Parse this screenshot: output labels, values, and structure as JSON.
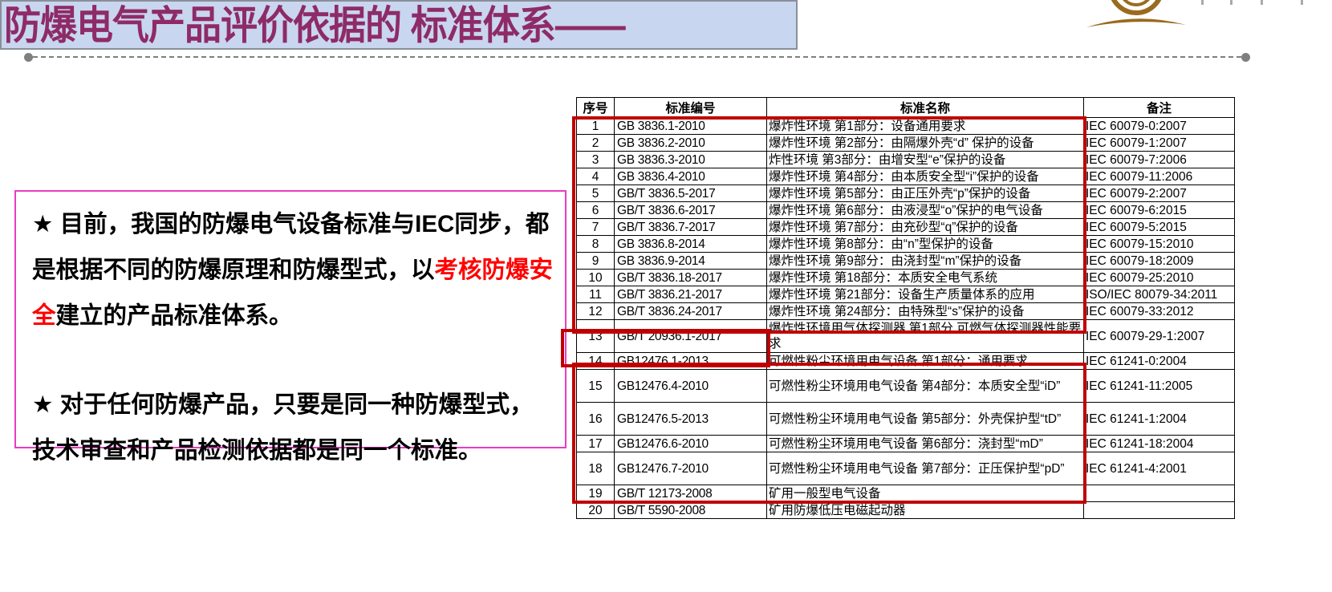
{
  "slide": {
    "title": "防爆电气产品评价依据的 标准体系",
    "title_suffix": "——",
    "title_color": "#8e2b66",
    "title_bg": "#c9d6f0"
  },
  "logo": {
    "name": "certification-emblem",
    "color": "#9a6a1f"
  },
  "note_box": {
    "border_color": "#ea3cc2",
    "highlight_text_color": "#ff0000",
    "paragraphs": [
      {
        "segments": [
          {
            "text": "★ 目前，我国的防爆电气设备标准与IEC同步，都是根据不同的防爆原理和防爆型式，以",
            "color": "#000000"
          },
          {
            "text": "考核防爆安全",
            "color": "#ff0000"
          },
          {
            "text": "建立的产品标准体系。",
            "color": "#000000"
          }
        ]
      },
      {
        "segments": [
          {
            "text": "★ 对于任何防爆产品，只要是同一种防爆型式，技术审查和产品检测依据都是同一个标准。",
            "color": "#000000"
          }
        ]
      }
    ]
  },
  "table": {
    "highlight_color": "#c00000",
    "headers": [
      "序号",
      "标准编号",
      "标准名称",
      "备注"
    ],
    "rows": [
      {
        "no": "1",
        "code": "GB 3836.1-2010",
        "name": "爆炸性环境 第1部分：设备通用要求",
        "remark": "IEC 60079-0:2007",
        "tall": false
      },
      {
        "no": "2",
        "code": "GB 3836.2-2010",
        "name": "爆炸性环境 第2部分：由隔爆外壳“d” 保护的设备",
        "remark": "IEC 60079-1:2007",
        "tall": false
      },
      {
        "no": "3",
        "code": "GB 3836.3-2010",
        "name": "炸性环境 第3部分：由增安型“e”保护的设备",
        "remark": "IEC 60079-7:2006",
        "tall": false
      },
      {
        "no": "4",
        "code": "GB 3836.4-2010",
        "name": "爆炸性环境 第4部分：由本质安全型“i”保护的设备",
        "remark": "IEC 60079-11:2006",
        "tall": false
      },
      {
        "no": "5",
        "code": "GB/T 3836.5-2017",
        "name": "爆炸性环境 第5部分：由正压外壳“p”保护的设备",
        "remark": "IEC 60079-2:2007",
        "tall": false
      },
      {
        "no": "6",
        "code": "GB/T 3836.6-2017",
        "name": "爆炸性环境 第6部分：由液浸型“o”保护的电气设备",
        "remark": "IEC 60079-6:2015",
        "tall": false
      },
      {
        "no": "7",
        "code": "GB/T 3836.7-2017",
        "name": "爆炸性环境 第7部分：由充砂型“q”保护的设备",
        "remark": "IEC 60079-5:2015",
        "tall": false
      },
      {
        "no": "8",
        "code": "GB 3836.8-2014",
        "name": "爆炸性环境 第8部分：由“n”型保护的设备",
        "remark": "IEC 60079-15:2010",
        "tall": false
      },
      {
        "no": "9",
        "code": "GB 3836.9-2014",
        "name": "爆炸性环境 第9部分：由浇封型“m”保护的设备",
        "remark": "IEC 60079-18:2009",
        "tall": false
      },
      {
        "no": "10",
        "code": "GB/T 3836.18-2017",
        "name": "爆炸性环境 第18部分：本质安全电气系统",
        "remark": "IEC 60079-25:2010",
        "tall": false
      },
      {
        "no": "11",
        "code": "GB/T 3836.21-2017",
        "name": "爆炸性环境 第21部分：设备生产质量体系的应用",
        "remark": "ISO/IEC 80079-34:2011",
        "tall": false
      },
      {
        "no": "12",
        "code": "GB/T 3836.24-2017",
        "name": "爆炸性环境 第24部分：由特殊型“s”保护的设备",
        "remark": "IEC 60079-33:2012",
        "tall": false
      },
      {
        "no": "13",
        "code": "GB/T 20936.1-2017",
        "name": "爆炸性环境用气体探测器 第1部分 可燃气体探测器性能要求",
        "remark": "IEC 60079-29-1:2007",
        "tall": true
      },
      {
        "no": "14",
        "code": "GB12476.1-2013",
        "name": "可燃性粉尘环境用电气设备 第1部分：通用要求",
        "remark": "IEC 61241-0:2004",
        "tall": false
      },
      {
        "no": "15",
        "code": "GB12476.4-2010",
        "name": "可燃性粉尘环境用电气设备 第4部分：本质安全型“iD”",
        "remark": "IEC 61241-11:2005",
        "tall": true
      },
      {
        "no": "16",
        "code": "GB12476.5-2013",
        "name": "可燃性粉尘环境用电气设备 第5部分：外壳保护型“tD”",
        "remark": "IEC 61241-1:2004",
        "tall": true
      },
      {
        "no": "17",
        "code": "GB12476.6-2010",
        "name": "可燃性粉尘环境用电气设备 第6部分：浇封型“mD”",
        "remark": "IEC 61241-18:2004",
        "tall": false
      },
      {
        "no": "18",
        "code": "GB12476.7-2010",
        "name": "可燃性粉尘环境用电气设备 第7部分：正压保护型“pD”",
        "remark": "IEC 61241-4:2001",
        "tall": true
      },
      {
        "no": "19",
        "code": "GB/T 12173-2008",
        "name": "矿用一般型电气设备",
        "remark": "",
        "tall": false
      },
      {
        "no": "20",
        "code": "GB/T 5590-2008",
        "name": "矿用防爆低压电磁起动器",
        "remark": "",
        "tall": false
      }
    ]
  }
}
